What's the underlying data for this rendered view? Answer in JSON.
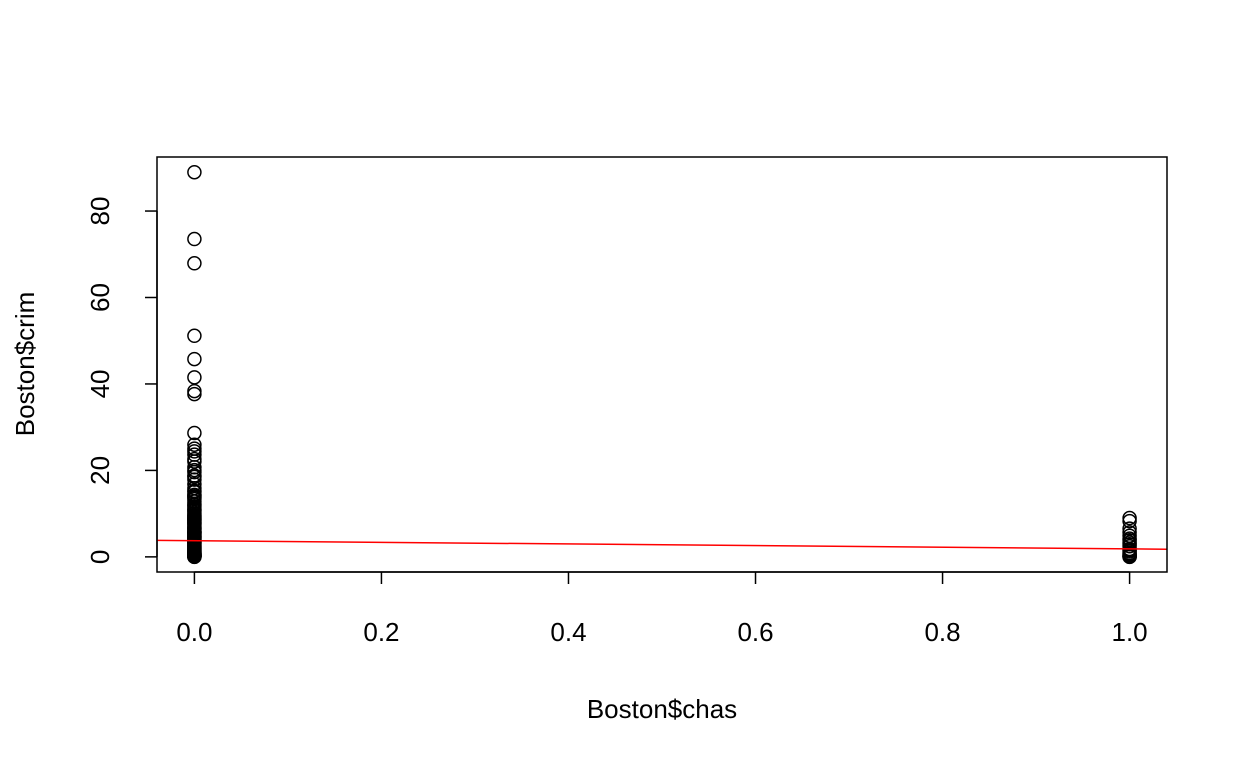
{
  "chart_data": {
    "type": "scatter",
    "title": "",
    "xlabel": "Boston$chas",
    "ylabel": "Boston$crim",
    "xlim": [
      -0.04,
      1.04
    ],
    "ylim": [
      -3.5,
      92.5
    ],
    "grid": false,
    "legend": "none",
    "x_ticks": [
      "0.0",
      "0.2",
      "0.4",
      "0.6",
      "0.8",
      "1.0"
    ],
    "y_ticks": [
      "0",
      "20",
      "40",
      "60",
      "80"
    ],
    "point_color": "#000000",
    "fit_line": {
      "color": "#ff0000",
      "intercept": 3.744,
      "slope": -1.893
    },
    "series": [
      {
        "x_value": 0,
        "y": [
          88.98,
          73.53,
          67.92,
          51.14,
          45.75,
          41.53,
          38.35,
          37.66,
          28.66,
          25.94,
          25.05,
          24.39,
          23.65,
          22.6,
          22.05,
          20.72,
          20.08,
          19.61,
          18.81,
          18.5,
          17.87,
          16.81,
          15.88,
          15.29,
          15.02,
          14.33,
          14.24,
          13.91,
          13.68,
          13.36,
          12.8,
          12.25,
          11.95,
          11.58,
          11.16,
          10.83,
          10.67,
          10.23,
          9.92,
          9.59,
          9.39,
          9.19,
          8.98,
          8.79,
          8.64,
          8.49,
          8.27,
          8.05,
          7.84,
          7.67,
          7.4,
          7.05,
          6.8,
          6.65,
          6.44,
          6.29,
          5.87,
          5.82,
          5.69,
          5.58,
          5.44,
          5.29,
          5.09,
          4.87,
          4.75,
          4.55,
          4.42,
          4.26,
          4.1,
          3.85,
          3.68,
          3.47,
          3.32,
          3.16,
          2.92,
          2.73,
          2.45,
          2.38,
          2.15,
          1.96,
          1.83,
          1.63,
          1.42,
          1.27,
          1.13,
          1.0,
          0.88,
          0.79,
          0.68,
          0.62,
          0.54,
          0.5,
          0.43,
          0.35,
          0.3,
          0.25,
          0.2,
          0.15,
          0.1,
          0.06,
          0.03,
          0.01
        ]
      },
      {
        "x_value": 1,
        "y": [
          8.98,
          8.27,
          6.54,
          5.66,
          4.89,
          4.22,
          3.85,
          3.32,
          2.92,
          2.45,
          1.83,
          1.52,
          1.23,
          0.85,
          0.61,
          0.45,
          0.3,
          0.16,
          0.08,
          0.03,
          0.01
        ]
      }
    ]
  }
}
